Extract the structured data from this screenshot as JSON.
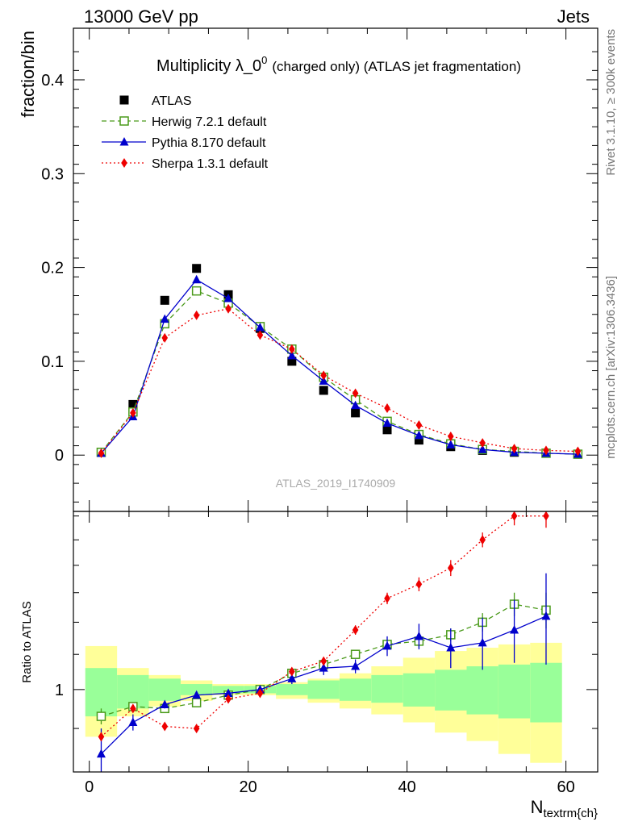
{
  "header": {
    "left": "13000 GeV pp",
    "right": "Jets"
  },
  "side_labels": {
    "rivet": "Rivet 3.1.10, ≥ 300k events",
    "mcplots": "mcplots.cern.ch [arXiv:1306.3436]"
  },
  "watermark": "ATLAS_2019_I1740909",
  "colors": {
    "atlas": "#000000",
    "herwig": "#4a9a1a",
    "pythia": "#0000cc",
    "sherpa": "#ee0000",
    "band_inner": "#99ff99",
    "band_outer": "#ffff99"
  },
  "chart_data": [
    {
      "name": "main",
      "type": "scatter",
      "title_main": "Multiplicity λ_0",
      "title_sup": "0",
      "title_rest": "(charged only) (ATLAS jet fragmentation)",
      "ylabel": "fraction/bin",
      "xlim": [
        -2,
        64
      ],
      "ylim": [
        -0.06,
        0.455
      ],
      "yticks": [
        0,
        0.1,
        0.2,
        0.3,
        0.4
      ],
      "ytick_labels": [
        "0",
        "0.1",
        "0.2",
        "0.3",
        "0.4"
      ],
      "legend_position": "top-left",
      "x": [
        1.5,
        5.5,
        9.5,
        13.5,
        17.5,
        21.5,
        25.5,
        29.5,
        33.5,
        37.5,
        41.5,
        45.5,
        49.5,
        53.5,
        57.5,
        61.5
      ],
      "series": [
        {
          "key": "atlas",
          "name": "ATLAS",
          "marker": "square",
          "values": [
            0.003,
            0.054,
            0.165,
            0.199,
            0.171,
            0.135,
            0.1,
            0.069,
            0.045,
            0.027,
            0.016,
            0.009,
            0.005,
            0.003,
            0.002,
            0.001
          ]
        },
        {
          "key": "herwig",
          "name": "Herwig 7.2.1 default",
          "marker": "open-square",
          "line": "dashed",
          "values": [
            0.003,
            0.046,
            0.14,
            0.175,
            0.162,
            0.137,
            0.113,
            0.083,
            0.059,
            0.036,
            0.022,
            0.012,
            0.006,
            0.004,
            0.002,
            0.001
          ]
        },
        {
          "key": "pythia",
          "name": "Pythia 8.170 default",
          "marker": "triangle",
          "line": "solid",
          "values": [
            0.002,
            0.041,
            0.145,
            0.187,
            0.167,
            0.136,
            0.106,
            0.079,
            0.053,
            0.034,
            0.021,
            0.011,
            0.006,
            0.003,
            0.002,
            0.001
          ]
        },
        {
          "key": "sherpa",
          "name": "Sherpa 1.3.1 default",
          "marker": "diamond",
          "line": "dotted",
          "values": [
            0.002,
            0.045,
            0.125,
            0.149,
            0.156,
            0.128,
            0.113,
            0.085,
            0.066,
            0.05,
            0.032,
            0.02,
            0.013,
            0.007,
            0.005,
            0.004
          ]
        }
      ]
    },
    {
      "name": "ratio",
      "type": "scatter",
      "ylabel": "Ratio to ATLAS",
      "xlabel": "N",
      "xlabel_sub": "textrm{ch}",
      "xlim": [
        -2,
        64
      ],
      "log_y": true,
      "ylim": [
        0.8,
        1.62
      ],
      "yticks": [
        1
      ],
      "ytick_labels": [
        "1"
      ],
      "xticks": [
        0,
        20,
        40,
        60
      ],
      "xtick_labels": [
        "0",
        "20",
        "40",
        "60"
      ],
      "bins": [
        [
          -0.5,
          3.5
        ],
        [
          3.5,
          7.5
        ],
        [
          7.5,
          11.5
        ],
        [
          11.5,
          15.5
        ],
        [
          15.5,
          19.5
        ],
        [
          19.5,
          23.5
        ],
        [
          23.5,
          27.5
        ],
        [
          27.5,
          31.5
        ],
        [
          31.5,
          35.5
        ],
        [
          35.5,
          39.5
        ],
        [
          39.5,
          43.5
        ],
        [
          43.5,
          47.5
        ],
        [
          47.5,
          51.5
        ],
        [
          51.5,
          55.5
        ],
        [
          55.5,
          59.5
        ]
      ],
      "band_inner": [
        [
          0.93,
          1.06
        ],
        [
          0.95,
          1.04
        ],
        [
          0.97,
          1.03
        ],
        [
          0.985,
          1.015
        ],
        [
          0.99,
          1.01
        ],
        [
          0.99,
          1.01
        ],
        [
          0.985,
          1.015
        ],
        [
          0.975,
          1.025
        ],
        [
          0.97,
          1.03
        ],
        [
          0.965,
          1.04
        ],
        [
          0.955,
          1.045
        ],
        [
          0.945,
          1.055
        ],
        [
          0.935,
          1.065
        ],
        [
          0.925,
          1.07
        ],
        [
          0.915,
          1.075
        ]
      ],
      "band_outer": [
        [
          0.88,
          1.125
        ],
        [
          0.93,
          1.06
        ],
        [
          0.955,
          1.04
        ],
        [
          0.97,
          1.025
        ],
        [
          0.985,
          1.015
        ],
        [
          0.985,
          1.015
        ],
        [
          0.975,
          1.02
        ],
        [
          0.965,
          1.03
        ],
        [
          0.95,
          1.045
        ],
        [
          0.935,
          1.065
        ],
        [
          0.915,
          1.09
        ],
        [
          0.89,
          1.11
        ],
        [
          0.87,
          1.12
        ],
        [
          0.84,
          1.13
        ],
        [
          0.82,
          1.135
        ]
      ],
      "x": [
        1.5,
        5.5,
        9.5,
        13.5,
        17.5,
        21.5,
        25.5,
        29.5,
        33.5,
        37.5,
        41.5,
        45.5,
        49.5,
        53.5,
        57.5
      ],
      "series": [
        {
          "key": "herwig",
          "name": "Herwig 7.2.1 default",
          "marker": "open-square",
          "line": "dashed",
          "values": [
            0.93,
            0.955,
            0.95,
            0.965,
            0.985,
            1.0,
            1.045,
            1.07,
            1.1,
            1.13,
            1.14,
            1.16,
            1.2,
            1.26,
            1.24
          ],
          "errors": [
            0.02,
            0.01,
            0.005,
            0.005,
            0.005,
            0.005,
            0.01,
            0.01,
            0.01,
            0.015,
            0.02,
            0.02,
            0.03,
            0.04,
            0.06
          ]
        },
        {
          "key": "pythia",
          "name": "Pythia 8.170 default",
          "marker": "triangle",
          "line": "solid",
          "values": [
            0.84,
            0.915,
            0.96,
            0.985,
            0.99,
            1.0,
            1.03,
            1.06,
            1.065,
            1.125,
            1.155,
            1.12,
            1.135,
            1.175,
            1.22
          ],
          "errors": [
            0.06,
            0.02,
            0.01,
            0.005,
            0.005,
            0.01,
            0.015,
            0.02,
            0.02,
            0.03,
            0.04,
            0.06,
            0.08,
            0.1,
            0.15
          ]
        },
        {
          "key": "sherpa",
          "name": "Sherpa 1.3.1 default",
          "marker": "diamond",
          "line": "dotted",
          "values": [
            0.88,
            0.95,
            0.905,
            0.9,
            0.975,
            0.99,
            1.05,
            1.08,
            1.175,
            1.28,
            1.33,
            1.39,
            1.5,
            1.6,
            1.6
          ],
          "errors": [
            0.01,
            0.005,
            0.005,
            0.005,
            0.005,
            0.005,
            0.01,
            0.01,
            0.015,
            0.02,
            0.025,
            0.03,
            0.03,
            0.04,
            0.05
          ]
        }
      ]
    }
  ]
}
